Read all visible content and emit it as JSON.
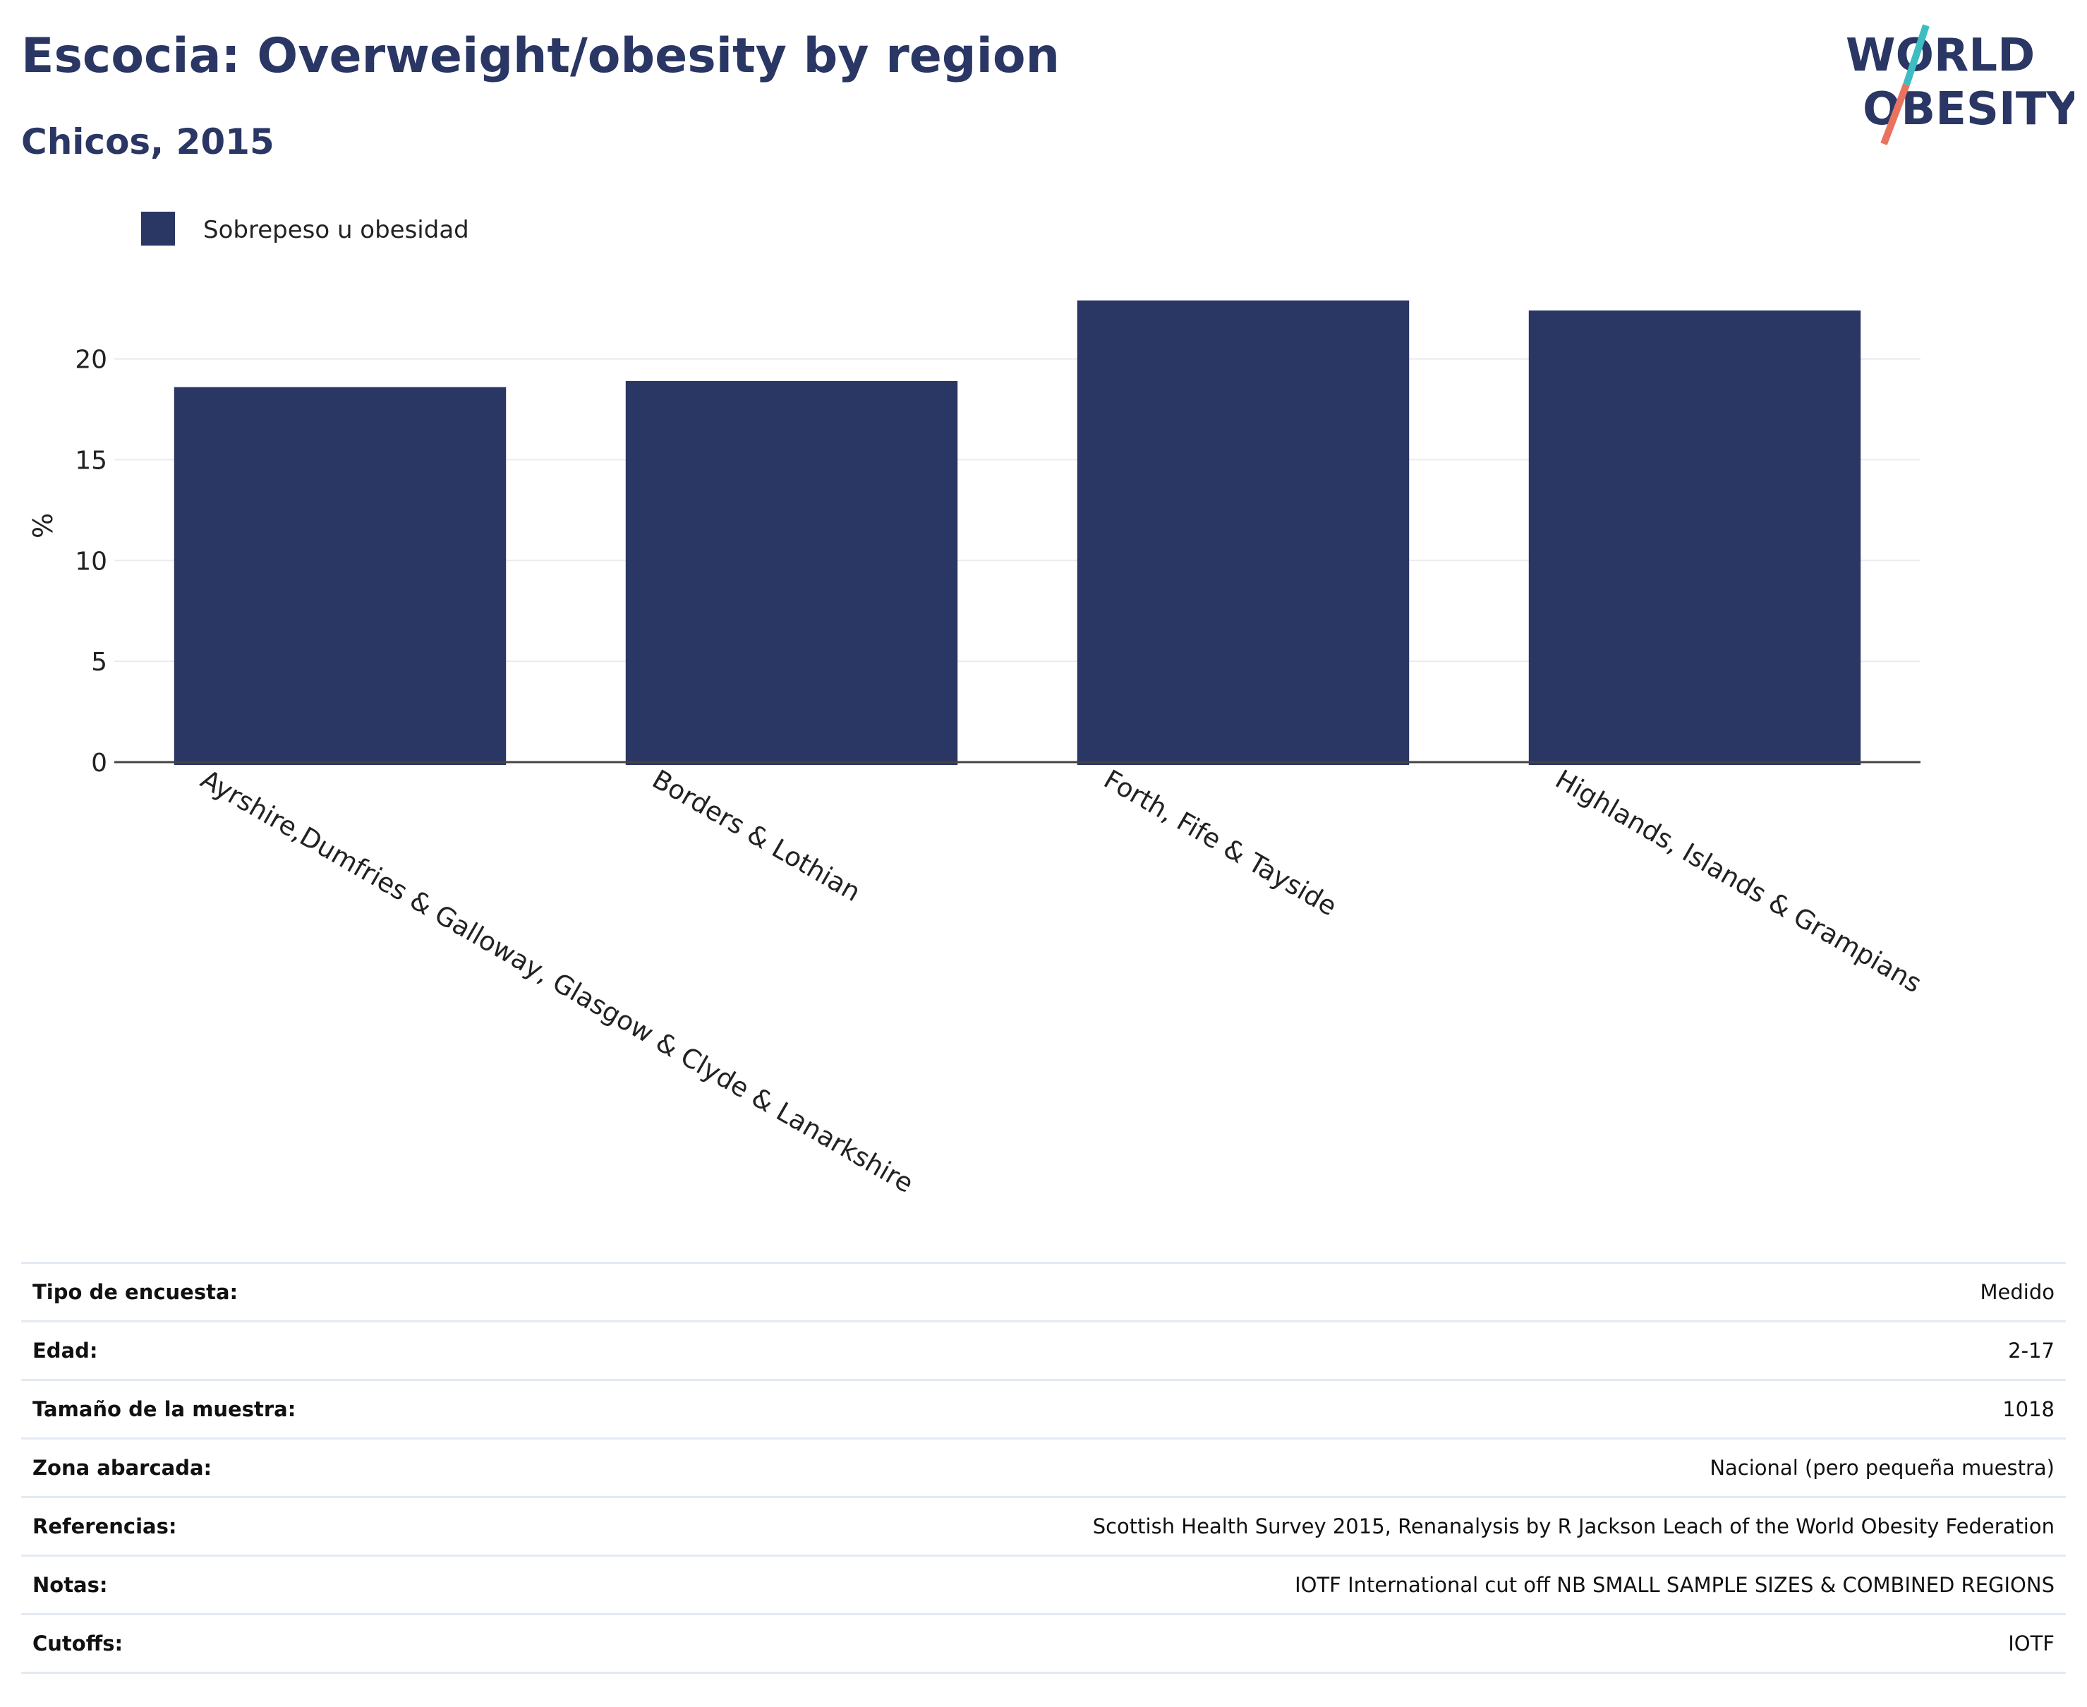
{
  "header": {
    "title": "Escocia: Overweight/obesity by region",
    "subtitle": "Chicos, 2015",
    "logo": {
      "line1": "WORLD",
      "line2": "OBESITY"
    }
  },
  "colors": {
    "bar": "#2a3663",
    "text": "#2a3663",
    "grid": "#e8ebf0",
    "logo_teal": "#3dbdc1",
    "logo_coral": "#e8735f"
  },
  "chart_data": {
    "type": "bar",
    "categories": [
      "Ayrshire,Dumfries & Galloway, Glasgow & Clyde & Lanarkshire",
      "Borders & Lothian",
      "Forth, Fife & Tayside",
      "Highlands, Islands & Grampians"
    ],
    "series": [
      {
        "name": "Sobrepeso u obesidad",
        "values": [
          18.6,
          18.9,
          22.9,
          22.4
        ]
      }
    ],
    "ylabel": "%",
    "xlabel": "",
    "ylim": [
      0,
      24.5
    ],
    "yticks": [
      0,
      5,
      10,
      15,
      20
    ],
    "grid": true,
    "legend": "top-left"
  },
  "metadata": [
    {
      "label": "Tipo de encuesta:",
      "value": "Medido"
    },
    {
      "label": "Edad:",
      "value": "2-17"
    },
    {
      "label": "Tamaño de la muestra:",
      "value": "1018"
    },
    {
      "label": "Zona abarcada:",
      "value": "Nacional (pero pequeña muestra)"
    },
    {
      "label": "Referencias:",
      "value": "Scottish Health Survey 2015, Renanalysis by R Jackson Leach of the World Obesity Federation"
    },
    {
      "label": "Notas:",
      "value": "IOTF International cut off NB SMALL SAMPLE SIZES & COMBINED REGIONS"
    },
    {
      "label": "Cutoffs:",
      "value": "IOTF"
    }
  ]
}
